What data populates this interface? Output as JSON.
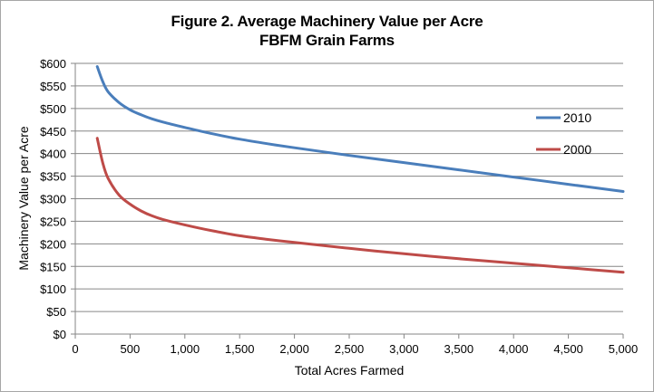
{
  "chart_data": {
    "type": "line",
    "title": "Figure 2. Average Machinery Value per Acre",
    "subtitle": "FBFM Grain Farms",
    "xlabel": "Total Acres Farmed",
    "ylabel": "Machinery Value per Acre",
    "xlim": [
      0,
      5000
    ],
    "ylim": [
      0,
      600
    ],
    "xticks": [
      0,
      500,
      1000,
      1500,
      2000,
      2500,
      3000,
      3500,
      4000,
      4500,
      5000
    ],
    "xtick_labels": [
      "0",
      "500",
      "1,000",
      "1,500",
      "2,000",
      "2,500",
      "3,000",
      "3,500",
      "4,000",
      "4,500",
      "5,000"
    ],
    "yticks": [
      0,
      50,
      100,
      150,
      200,
      250,
      300,
      350,
      400,
      450,
      500,
      550,
      600
    ],
    "ytick_labels": [
      "$0",
      "$50",
      "$100",
      "$150",
      "$200",
      "$250",
      "$300",
      "$350",
      "$400",
      "$450",
      "$500",
      "$550",
      "$600"
    ],
    "grid": "horizontal",
    "legend": "right",
    "series": [
      {
        "name": "2010",
        "color": "#4a7ebb",
        "x": [
          200,
          250,
          300,
          400,
          500,
          600,
          700,
          800,
          1000,
          1250,
          1500,
          1750,
          2000,
          2500,
          3000,
          3500,
          4000,
          4500,
          5000
        ],
        "y": [
          593,
          560,
          537,
          513,
          497,
          486,
          477,
          470,
          458,
          444,
          432,
          422,
          413,
          396,
          380,
          364,
          348,
          332,
          316
        ]
      },
      {
        "name": "2000",
        "color": "#be4b48",
        "x": [
          200,
          250,
          300,
          400,
          500,
          600,
          700,
          800,
          1000,
          1250,
          1500,
          1750,
          2000,
          2500,
          3000,
          3500,
          4000,
          4500,
          5000
        ],
        "y": [
          434,
          380,
          345,
          308,
          288,
          273,
          262,
          254,
          242,
          229,
          218,
          210,
          203,
          190,
          178,
          167,
          157,
          147,
          137
        ]
      }
    ]
  }
}
